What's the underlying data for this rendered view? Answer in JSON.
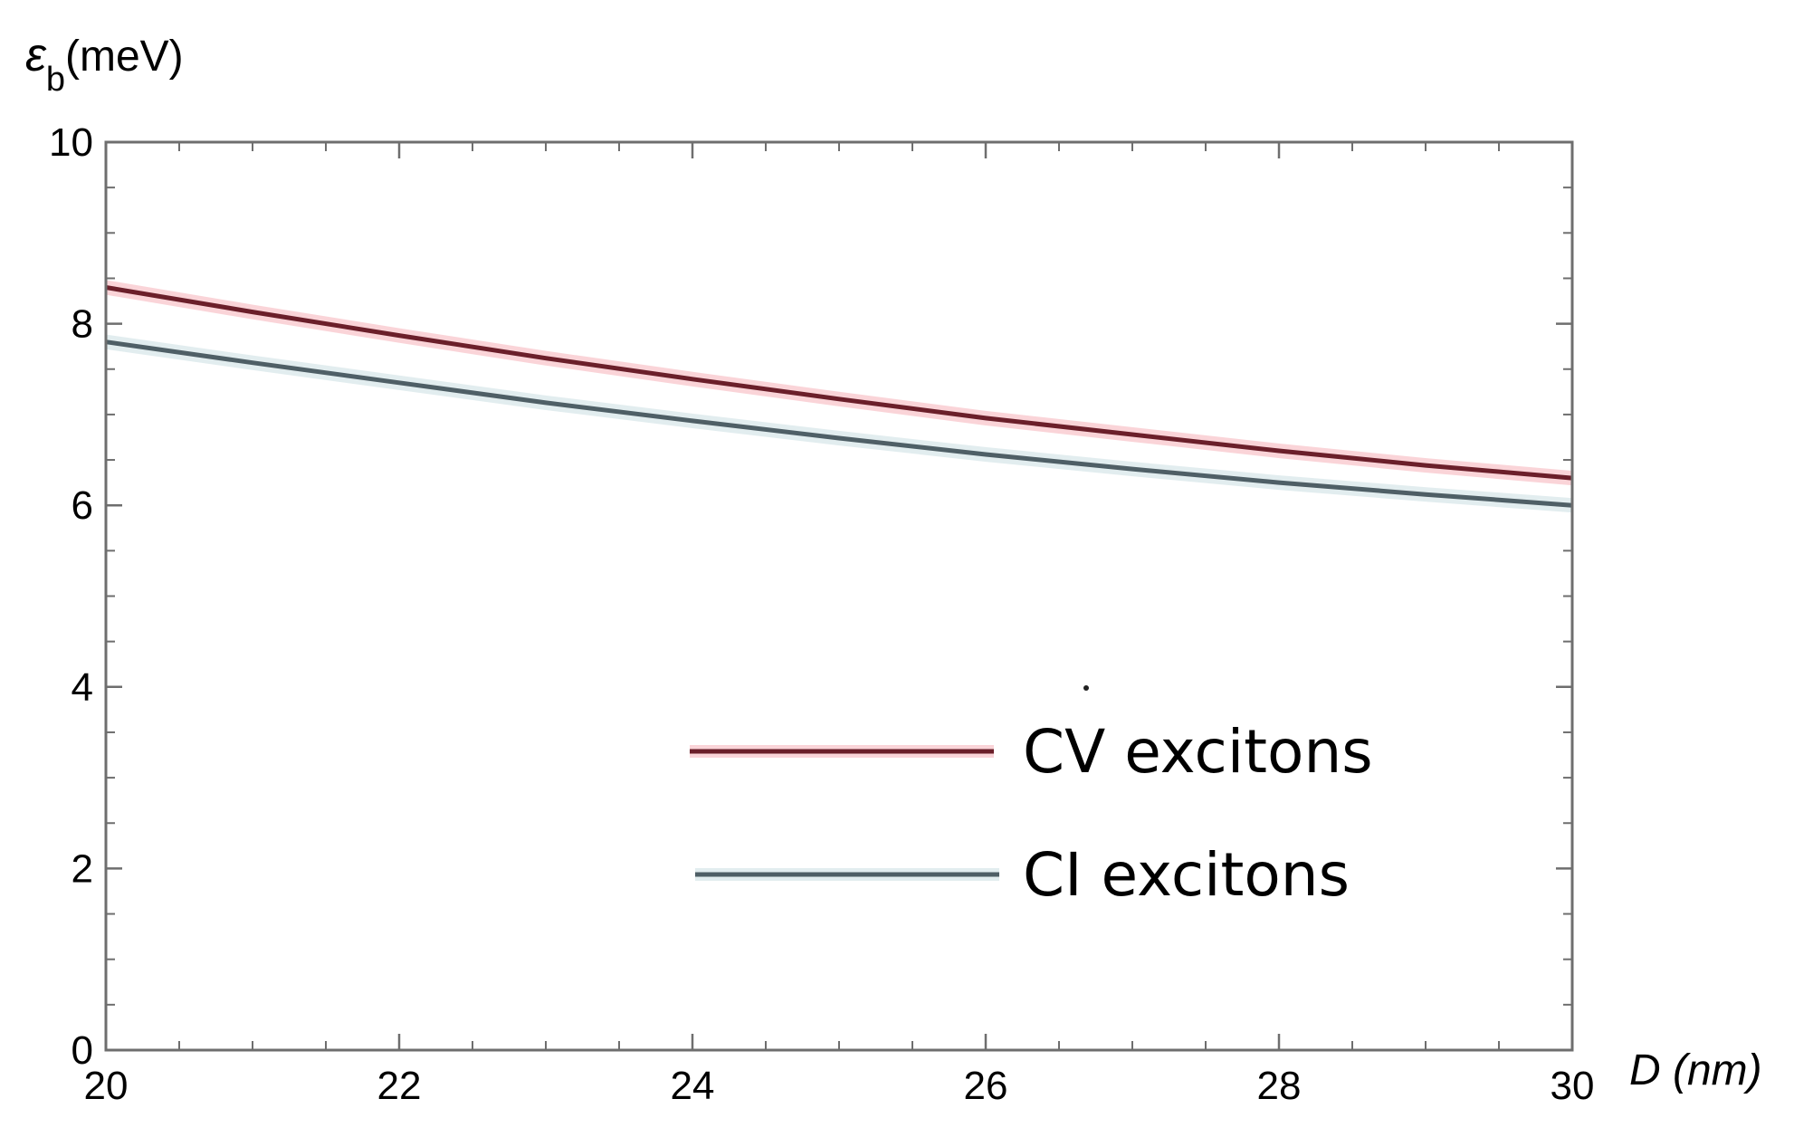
{
  "chart_data": {
    "type": "line",
    "title": "",
    "xlabel": "D (nm)",
    "ylabel_symbol": "ε",
    "ylabel_subscript": "b",
    "ylabel_unit": "(meV)",
    "xlim": [
      20,
      30
    ],
    "ylim": [
      0,
      10
    ],
    "x_ticks": [
      20,
      22,
      24,
      26,
      28,
      30
    ],
    "y_ticks": [
      0,
      2,
      4,
      6,
      8,
      10
    ],
    "x_minor_step": 0.5,
    "y_minor_step": 0.5,
    "grid": false,
    "legend_position": "bottom-right",
    "x": [
      20,
      21,
      22,
      23,
      24,
      25,
      26,
      27,
      28,
      29,
      30
    ],
    "series": [
      {
        "name": "CV excitons",
        "color": "#6b1f2a",
        "glow_color": "#f4a0a8",
        "values": [
          8.4,
          8.13,
          7.87,
          7.62,
          7.39,
          7.17,
          6.96,
          6.78,
          6.6,
          6.44,
          6.3
        ]
      },
      {
        "name": "CI excitons",
        "color": "#4f5f66",
        "glow_color": "#bfd6dc",
        "values": [
          7.8,
          7.57,
          7.35,
          7.13,
          6.93,
          6.74,
          6.56,
          6.4,
          6.25,
          6.12,
          6.0
        ]
      }
    ]
  }
}
